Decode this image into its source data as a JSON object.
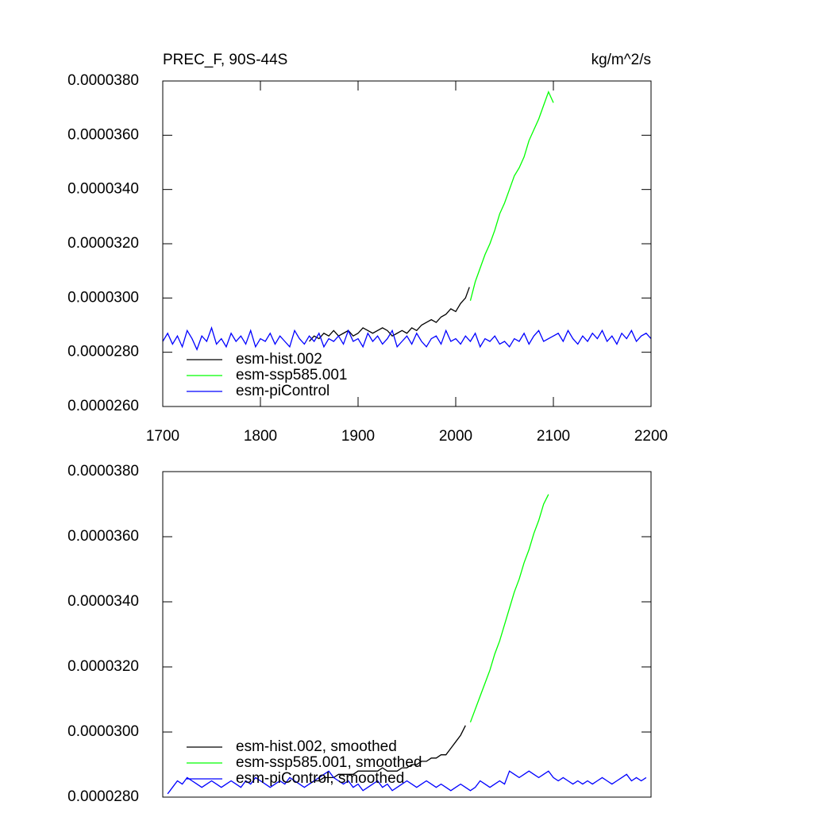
{
  "chart_data": [
    {
      "type": "line",
      "title": "PREC_F, 90S-44S",
      "units": "kg/m^2/s",
      "xlim": [
        1700,
        2200
      ],
      "xticks": [
        1700,
        1800,
        1900,
        2000,
        2100,
        2200
      ],
      "ylim": [
        2.6e-05,
        3.8e-05
      ],
      "yticks": [
        {
          "value": 2.6e-05,
          "label": "0.0000260"
        },
        {
          "value": 2.8e-05,
          "label": "0.0000280"
        },
        {
          "value": 3e-05,
          "label": "0.0000300"
        },
        {
          "value": 3.2e-05,
          "label": "0.0000320"
        },
        {
          "value": 3.4e-05,
          "label": "0.0000340"
        },
        {
          "value": 3.6e-05,
          "label": "0.0000360"
        },
        {
          "value": 3.8e-05,
          "label": "0.0000380"
        }
      ],
      "series": [
        {
          "name": "esm-hist.002",
          "color": "#000000",
          "x": [
            1850,
            1855,
            1860,
            1865,
            1870,
            1875,
            1880,
            1885,
            1890,
            1895,
            1900,
            1905,
            1910,
            1915,
            1920,
            1925,
            1930,
            1935,
            1940,
            1945,
            1950,
            1955,
            1960,
            1965,
            1970,
            1975,
            1980,
            1985,
            1990,
            1995,
            2000,
            2005,
            2010,
            2014
          ],
          "values": [
            2.84e-05,
            2.86e-05,
            2.85e-05,
            2.87e-05,
            2.86e-05,
            2.88e-05,
            2.86e-05,
            2.87e-05,
            2.88e-05,
            2.86e-05,
            2.87e-05,
            2.89e-05,
            2.88e-05,
            2.87e-05,
            2.88e-05,
            2.89e-05,
            2.88e-05,
            2.86e-05,
            2.87e-05,
            2.88e-05,
            2.87e-05,
            2.89e-05,
            2.88e-05,
            2.9e-05,
            2.91e-05,
            2.92e-05,
            2.91e-05,
            2.93e-05,
            2.94e-05,
            2.96e-05,
            2.95e-05,
            2.98e-05,
            3e-05,
            3.04e-05
          ]
        },
        {
          "name": "esm-ssp585.001",
          "color": "#00ff00",
          "x": [
            2015,
            2020,
            2025,
            2030,
            2035,
            2040,
            2045,
            2050,
            2055,
            2060,
            2065,
            2070,
            2075,
            2080,
            2085,
            2090,
            2095,
            2100
          ],
          "values": [
            2.99e-05,
            3.06e-05,
            3.11e-05,
            3.16e-05,
            3.2e-05,
            3.25e-05,
            3.31e-05,
            3.35e-05,
            3.4e-05,
            3.45e-05,
            3.48e-05,
            3.52e-05,
            3.58e-05,
            3.62e-05,
            3.66e-05,
            3.71e-05,
            3.76e-05,
            3.72e-05
          ]
        },
        {
          "name": "esm-piControl",
          "color": "#0000ff",
          "x": [
            1700,
            1705,
            1710,
            1715,
            1720,
            1725,
            1730,
            1735,
            1740,
            1745,
            1750,
            1755,
            1760,
            1765,
            1770,
            1775,
            1780,
            1785,
            1790,
            1795,
            1800,
            1805,
            1810,
            1815,
            1820,
            1825,
            1830,
            1835,
            1840,
            1845,
            1850,
            1855,
            1860,
            1865,
            1870,
            1875,
            1880,
            1885,
            1890,
            1895,
            1900,
            1905,
            1910,
            1915,
            1920,
            1925,
            1930,
            1935,
            1940,
            1945,
            1950,
            1955,
            1960,
            1965,
            1970,
            1975,
            1980,
            1985,
            1990,
            1995,
            2000,
            2005,
            2010,
            2015,
            2020,
            2025,
            2030,
            2035,
            2040,
            2045,
            2050,
            2055,
            2060,
            2065,
            2070,
            2075,
            2080,
            2085,
            2090,
            2095,
            2100,
            2105,
            2110,
            2115,
            2120,
            2125,
            2130,
            2135,
            2140,
            2145,
            2150,
            2155,
            2160,
            2165,
            2170,
            2175,
            2180,
            2185,
            2190,
            2195,
            2200
          ],
          "values": [
            2.84e-05,
            2.87e-05,
            2.83e-05,
            2.86e-05,
            2.82e-05,
            2.88e-05,
            2.85e-05,
            2.81e-05,
            2.86e-05,
            2.84e-05,
            2.89e-05,
            2.83e-05,
            2.85e-05,
            2.82e-05,
            2.87e-05,
            2.84e-05,
            2.86e-05,
            2.83e-05,
            2.88e-05,
            2.82e-05,
            2.85e-05,
            2.84e-05,
            2.87e-05,
            2.83e-05,
            2.86e-05,
            2.84e-05,
            2.82e-05,
            2.88e-05,
            2.85e-05,
            2.83e-05,
            2.86e-05,
            2.84e-05,
            2.87e-05,
            2.82e-05,
            2.85e-05,
            2.84e-05,
            2.86e-05,
            2.83e-05,
            2.88e-05,
            2.84e-05,
            2.85e-05,
            2.82e-05,
            2.87e-05,
            2.84e-05,
            2.86e-05,
            2.83e-05,
            2.85e-05,
            2.88e-05,
            2.82e-05,
            2.84e-05,
            2.86e-05,
            2.83e-05,
            2.87e-05,
            2.84e-05,
            2.82e-05,
            2.85e-05,
            2.86e-05,
            2.83e-05,
            2.88e-05,
            2.84e-05,
            2.85e-05,
            2.83e-05,
            2.86e-05,
            2.84e-05,
            2.87e-05,
            2.82e-05,
            2.85e-05,
            2.84e-05,
            2.86e-05,
            2.83e-05,
            2.84e-05,
            2.82e-05,
            2.85e-05,
            2.84e-05,
            2.87e-05,
            2.83e-05,
            2.86e-05,
            2.88e-05,
            2.84e-05,
            2.85e-05,
            2.86e-05,
            2.87e-05,
            2.84e-05,
            2.88e-05,
            2.85e-05,
            2.83e-05,
            2.86e-05,
            2.84e-05,
            2.87e-05,
            2.85e-05,
            2.88e-05,
            2.84e-05,
            2.86e-05,
            2.83e-05,
            2.87e-05,
            2.85e-05,
            2.88e-05,
            2.84e-05,
            2.86e-05,
            2.87e-05,
            2.85e-05
          ]
        }
      ]
    },
    {
      "type": "line",
      "xlim": [
        1700,
        2200
      ],
      "ylim": [
        2.8e-05,
        3.8e-05
      ],
      "yticks": [
        {
          "value": 2.8e-05,
          "label": "0.0000280"
        },
        {
          "value": 3e-05,
          "label": "0.0000300"
        },
        {
          "value": 3.2e-05,
          "label": "0.0000320"
        },
        {
          "value": 3.4e-05,
          "label": "0.0000340"
        },
        {
          "value": 3.6e-05,
          "label": "0.0000360"
        },
        {
          "value": 3.8e-05,
          "label": "0.0000380"
        }
      ],
      "series": [
        {
          "name": "esm-hist.002, smoothed",
          "color": "#000000",
          "x": [
            1850,
            1855,
            1860,
            1865,
            1870,
            1875,
            1880,
            1885,
            1890,
            1895,
            1900,
            1905,
            1910,
            1915,
            1920,
            1925,
            1930,
            1935,
            1940,
            1945,
            1950,
            1955,
            1960,
            1965,
            1970,
            1975,
            1980,
            1985,
            1990,
            1995,
            2000,
            2005,
            2010
          ],
          "values": [
            2.84e-05,
            2.85e-05,
            2.85e-05,
            2.86e-05,
            2.86e-05,
            2.86e-05,
            2.87e-05,
            2.87e-05,
            2.87e-05,
            2.87e-05,
            2.88e-05,
            2.88e-05,
            2.88e-05,
            2.88e-05,
            2.88e-05,
            2.89e-05,
            2.88e-05,
            2.88e-05,
            2.88e-05,
            2.89e-05,
            2.89e-05,
            2.9e-05,
            2.9e-05,
            2.91e-05,
            2.91e-05,
            2.92e-05,
            2.92e-05,
            2.93e-05,
            2.93e-05,
            2.95e-05,
            2.97e-05,
            2.99e-05,
            3.02e-05
          ]
        },
        {
          "name": "esm-ssp585.001, smoothed",
          "color": "#00ff00",
          "x": [
            2015,
            2020,
            2025,
            2030,
            2035,
            2040,
            2045,
            2050,
            2055,
            2060,
            2065,
            2070,
            2075,
            2080,
            2085,
            2090,
            2095
          ],
          "values": [
            3.03e-05,
            3.07e-05,
            3.11e-05,
            3.15e-05,
            3.19e-05,
            3.24e-05,
            3.28e-05,
            3.33e-05,
            3.38e-05,
            3.43e-05,
            3.47e-05,
            3.52e-05,
            3.56e-05,
            3.61e-05,
            3.65e-05,
            3.7e-05,
            3.73e-05
          ]
        },
        {
          "name": "esm-piControl, smoothed",
          "color": "#0000ff",
          "x": [
            1705,
            1710,
            1715,
            1720,
            1725,
            1730,
            1735,
            1740,
            1745,
            1750,
            1755,
            1760,
            1765,
            1770,
            1775,
            1780,
            1785,
            1790,
            1795,
            1800,
            1805,
            1810,
            1815,
            1820,
            1825,
            1830,
            1835,
            1840,
            1845,
            1850,
            1855,
            1860,
            1865,
            1870,
            1875,
            1880,
            1885,
            1890,
            1895,
            1900,
            1905,
            1910,
            1915,
            1920,
            1925,
            1930,
            1935,
            1940,
            1945,
            1950,
            1955,
            1960,
            1965,
            1970,
            1975,
            1980,
            1985,
            1990,
            1995,
            2000,
            2005,
            2010,
            2015,
            2020,
            2025,
            2030,
            2035,
            2040,
            2045,
            2050,
            2055,
            2060,
            2065,
            2070,
            2075,
            2080,
            2085,
            2090,
            2095,
            2100,
            2105,
            2110,
            2115,
            2120,
            2125,
            2130,
            2135,
            2140,
            2145,
            2150,
            2155,
            2160,
            2165,
            2170,
            2175,
            2180,
            2185,
            2190,
            2195
          ],
          "values": [
            2.81e-05,
            2.83e-05,
            2.85e-05,
            2.84e-05,
            2.86e-05,
            2.85e-05,
            2.84e-05,
            2.83e-05,
            2.84e-05,
            2.85e-05,
            2.84e-05,
            2.83e-05,
            2.84e-05,
            2.85e-05,
            2.84e-05,
            2.83e-05,
            2.85e-05,
            2.84e-05,
            2.86e-05,
            2.85e-05,
            2.84e-05,
            2.83e-05,
            2.84e-05,
            2.85e-05,
            2.84e-05,
            2.86e-05,
            2.85e-05,
            2.84e-05,
            2.83e-05,
            2.84e-05,
            2.85e-05,
            2.86e-05,
            2.87e-05,
            2.88e-05,
            2.86e-05,
            2.85e-05,
            2.84e-05,
            2.85e-05,
            2.83e-05,
            2.84e-05,
            2.82e-05,
            2.83e-05,
            2.84e-05,
            2.85e-05,
            2.83e-05,
            2.84e-05,
            2.82e-05,
            2.83e-05,
            2.84e-05,
            2.85e-05,
            2.84e-05,
            2.83e-05,
            2.84e-05,
            2.85e-05,
            2.84e-05,
            2.83e-05,
            2.84e-05,
            2.83e-05,
            2.82e-05,
            2.83e-05,
            2.84e-05,
            2.83e-05,
            2.82e-05,
            2.83e-05,
            2.85e-05,
            2.84e-05,
            2.83e-05,
            2.84e-05,
            2.85e-05,
            2.84e-05,
            2.88e-05,
            2.87e-05,
            2.86e-05,
            2.87e-05,
            2.88e-05,
            2.87e-05,
            2.86e-05,
            2.87e-05,
            2.88e-05,
            2.86e-05,
            2.85e-05,
            2.86e-05,
            2.85e-05,
            2.84e-05,
            2.85e-05,
            2.84e-05,
            2.85e-05,
            2.84e-05,
            2.85e-05,
            2.86e-05,
            2.85e-05,
            2.84e-05,
            2.85e-05,
            2.86e-05,
            2.87e-05,
            2.85e-05,
            2.86e-05,
            2.85e-05,
            2.86e-05
          ]
        }
      ]
    }
  ]
}
